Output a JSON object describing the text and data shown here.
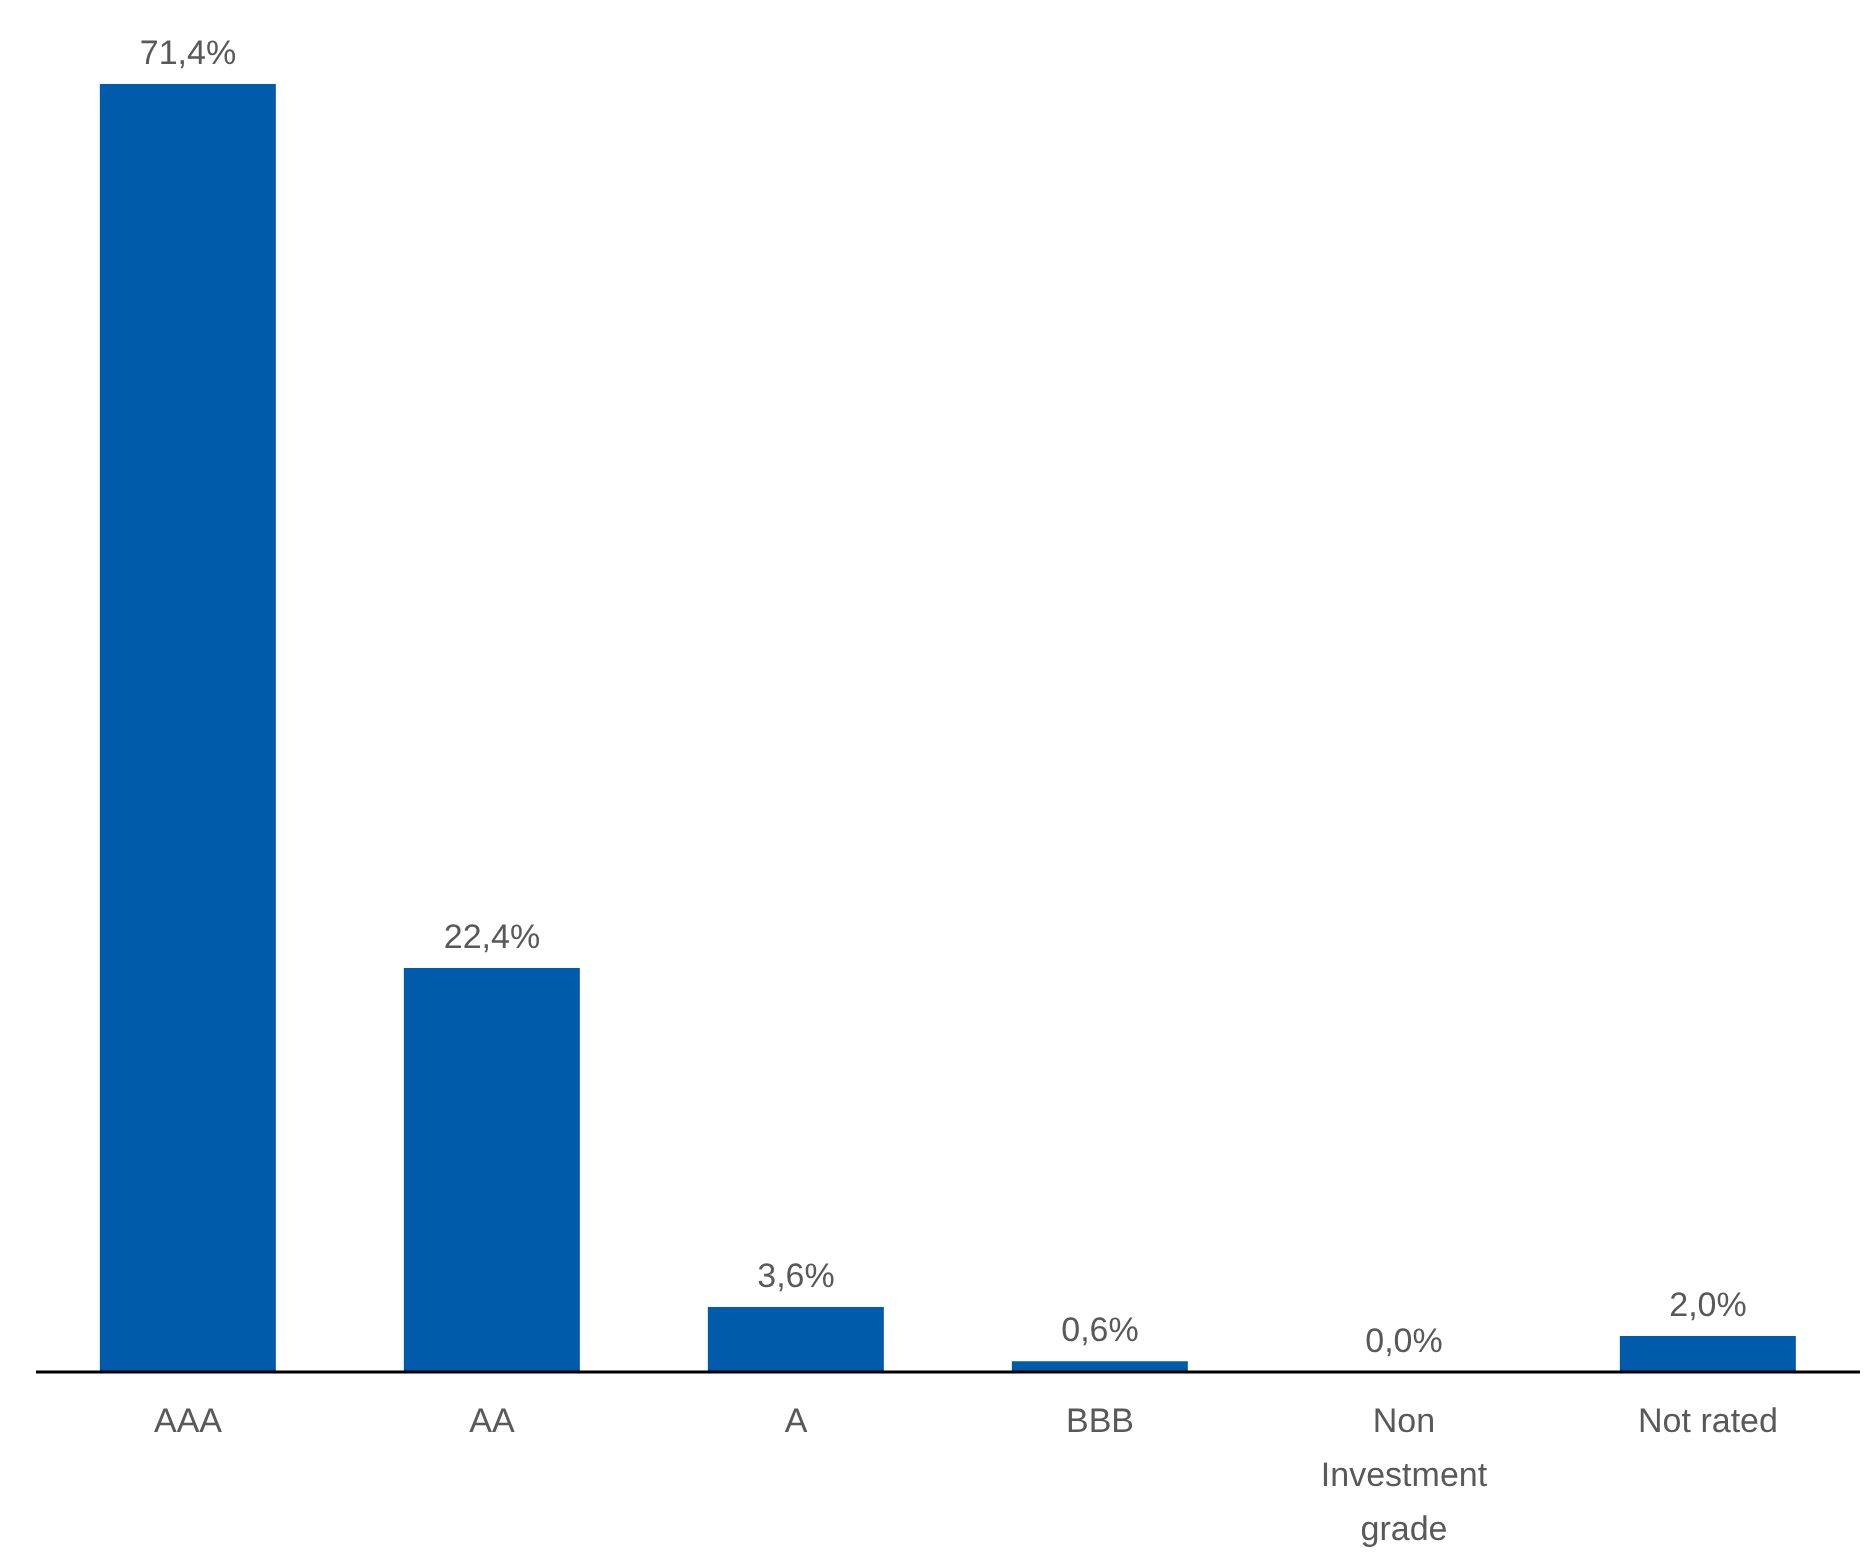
{
  "chart_data": {
    "type": "bar",
    "categories": [
      "AAA",
      "AA",
      "A",
      "BBB",
      "Non Investment grade",
      "Not rated"
    ],
    "values": [
      71.4,
      22.4,
      3.6,
      0.6,
      0.0,
      2.0
    ],
    "value_labels": [
      "71,4%",
      "22,4%",
      "3,6%",
      "0,6%",
      "0,0%",
      "2,0%"
    ],
    "color": "#005bab",
    "grid": false,
    "legend": false
  }
}
